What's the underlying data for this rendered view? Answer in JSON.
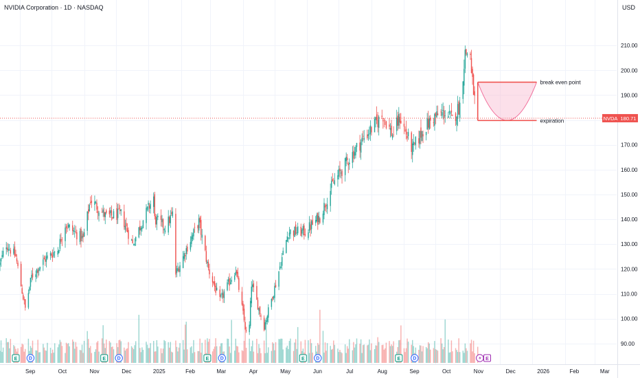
{
  "header": {
    "title": "NVIDIA Corporation · 1D · NASDAQ",
    "currency": "USD"
  },
  "colors": {
    "up": "#26a69a",
    "down": "#ef5350",
    "grid": "#f0f3fa",
    "axis_text": "#131722",
    "price_line": "#ef5350",
    "projection": "#e91e63"
  },
  "chart_data": {
    "type": "candlestick",
    "symbol": "NVDA",
    "timeframe": "1D",
    "y_axis": {
      "ticks": [
        90,
        100,
        110,
        120,
        130,
        140,
        150,
        160,
        170,
        180,
        190,
        200,
        210
      ],
      "tick_labels": [
        "90.00",
        "100.00",
        "110.00",
        "120.00",
        "130.00",
        "140.00",
        "150.00",
        "160.00",
        "170.00",
        "180.00",
        "190.00",
        "200.00",
        "210.00"
      ],
      "ylim": [
        82.2,
        221.1
      ]
    },
    "x_axis": {
      "labels": [
        "Sep",
        "Oct",
        "Nov",
        "Dec",
        "2025",
        "Feb",
        "Mar",
        "Apr",
        "May",
        "Jun",
        "Jul",
        "Aug",
        "Sep",
        "Oct",
        "Nov",
        "Dec",
        "2026",
        "Feb",
        "Mar"
      ],
      "xlim": [
        "2024-08-13",
        "2026-03-22"
      ]
    },
    "price_anchors": [
      [
        "2024-08-13",
        122
      ],
      [
        "2024-08-19",
        130
      ],
      [
        "2024-08-28",
        125
      ],
      [
        "2024-09-06",
        104
      ],
      [
        "2024-09-12",
        117
      ],
      [
        "2024-09-25",
        124
      ],
      [
        "2024-10-07",
        128
      ],
      [
        "2024-10-14",
        138
      ],
      [
        "2024-10-31",
        132
      ],
      [
        "2024-11-07",
        148
      ],
      [
        "2024-11-22",
        141
      ],
      [
        "2024-12-06",
        142
      ],
      [
        "2024-12-17",
        130
      ],
      [
        "2024-12-26",
        139
      ],
      [
        "2025-01-06",
        149
      ],
      [
        "2025-01-07",
        140
      ],
      [
        "2025-01-17",
        137
      ],
      [
        "2025-01-24",
        142
      ],
      [
        "2025-01-27",
        118
      ],
      [
        "2025-02-07",
        129
      ],
      [
        "2025-02-18",
        139
      ],
      [
        "2025-02-27",
        120
      ],
      [
        "2025-03-10",
        107
      ],
      [
        "2025-03-25",
        120
      ],
      [
        "2025-04-04",
        94
      ],
      [
        "2025-04-07",
        97
      ],
      [
        "2025-04-09",
        114
      ],
      [
        "2025-04-21",
        97
      ],
      [
        "2025-05-02",
        114
      ],
      [
        "2025-05-14",
        135
      ],
      [
        "2025-05-30",
        135
      ],
      [
        "2025-06-13",
        141
      ],
      [
        "2025-06-25",
        154
      ],
      [
        "2025-07-10",
        164
      ],
      [
        "2025-07-25",
        173
      ],
      [
        "2025-08-12",
        182
      ],
      [
        "2025-08-21",
        174
      ],
      [
        "2025-08-28",
        181
      ],
      [
        "2025-09-09",
        168
      ],
      [
        "2025-09-19",
        176
      ],
      [
        "2025-09-29",
        181
      ],
      [
        "2025-10-10",
        183
      ],
      [
        "2025-10-17",
        180
      ],
      [
        "2025-10-24",
        186
      ],
      [
        "2025-10-29",
        207
      ],
      [
        "2025-11-03",
        207
      ],
      [
        "2025-11-04",
        198
      ],
      [
        "2025-11-05",
        195
      ],
      [
        "2025-11-07",
        188
      ],
      [
        "2025-11-10",
        180.71
      ]
    ],
    "last_price": 180.71,
    "last_price_label": "180.71",
    "annotations": [
      {
        "text": "break even point",
        "price": 195.2
      },
      {
        "text": "expiration",
        "price": 179.8
      }
    ],
    "projection": {
      "start_date": "2025-11-10",
      "end_date": "2026-01-05",
      "upper": 195.2,
      "lower": 179.8
    },
    "events": [
      {
        "type": "E",
        "date": "2024-08-28"
      },
      {
        "type": "D",
        "date": "2024-09-11"
      },
      {
        "type": "E",
        "date": "2024-11-20"
      },
      {
        "type": "D",
        "date": "2024-12-04"
      },
      {
        "type": "E",
        "date": "2025-02-26"
      },
      {
        "type": "D",
        "date": "2025-03-12"
      },
      {
        "type": "E",
        "date": "2025-05-28"
      },
      {
        "type": "D",
        "date": "2025-06-11"
      },
      {
        "type": "E",
        "date": "2025-08-27"
      },
      {
        "type": "D",
        "date": "2025-09-11"
      },
      {
        "type": "split",
        "date": "2025-11-12"
      },
      {
        "type": "E",
        "date": "2025-11-19"
      }
    ]
  }
}
